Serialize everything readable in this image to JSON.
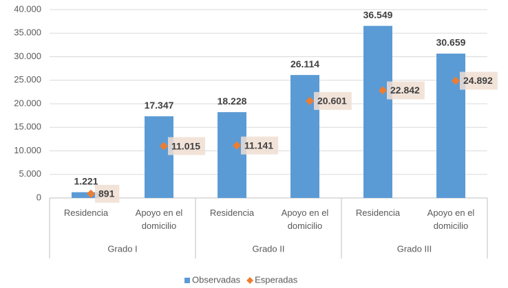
{
  "chart_data": {
    "type": "bar",
    "categories": [
      "Residencia",
      "Apoyo en el domicilio",
      "Residencia",
      "Apoyo en el domicilio",
      "Residencia",
      "Apoyo en el domicilio"
    ],
    "groups": [
      "Grado I",
      "Grado II",
      "Grado III"
    ],
    "series": [
      {
        "name": "Observadas",
        "color": "#5b9bd5",
        "kind": "bar",
        "values": [
          1221,
          17347,
          18228,
          26114,
          36549,
          30659
        ],
        "value_labels": [
          "1.221",
          "17.347",
          "18.228",
          "26.114",
          "36.549",
          "30.659"
        ]
      },
      {
        "name": "Esperadas",
        "color": "#ed7d31",
        "kind": "marker",
        "values": [
          891,
          11015,
          11141,
          20601,
          22842,
          24892
        ],
        "value_labels": [
          "891",
          "11.015",
          "11.141",
          "20.601",
          "22.842",
          "24.892"
        ]
      }
    ],
    "ylim": [
      0,
      40000
    ],
    "yticks": [
      {
        "value": 0,
        "label": "0"
      },
      {
        "value": 5000,
        "label": "5.000"
      },
      {
        "value": 10000,
        "label": "10.000"
      },
      {
        "value": 15000,
        "label": "15.000"
      },
      {
        "value": 20000,
        "label": "20.000"
      },
      {
        "value": 25000,
        "label": "25.000"
      },
      {
        "value": 30000,
        "label": "30.000"
      },
      {
        "value": 35000,
        "label": "35.000"
      },
      {
        "value": 40000,
        "label": "40.000"
      }
    ],
    "grid": true,
    "legend": "bottom"
  }
}
